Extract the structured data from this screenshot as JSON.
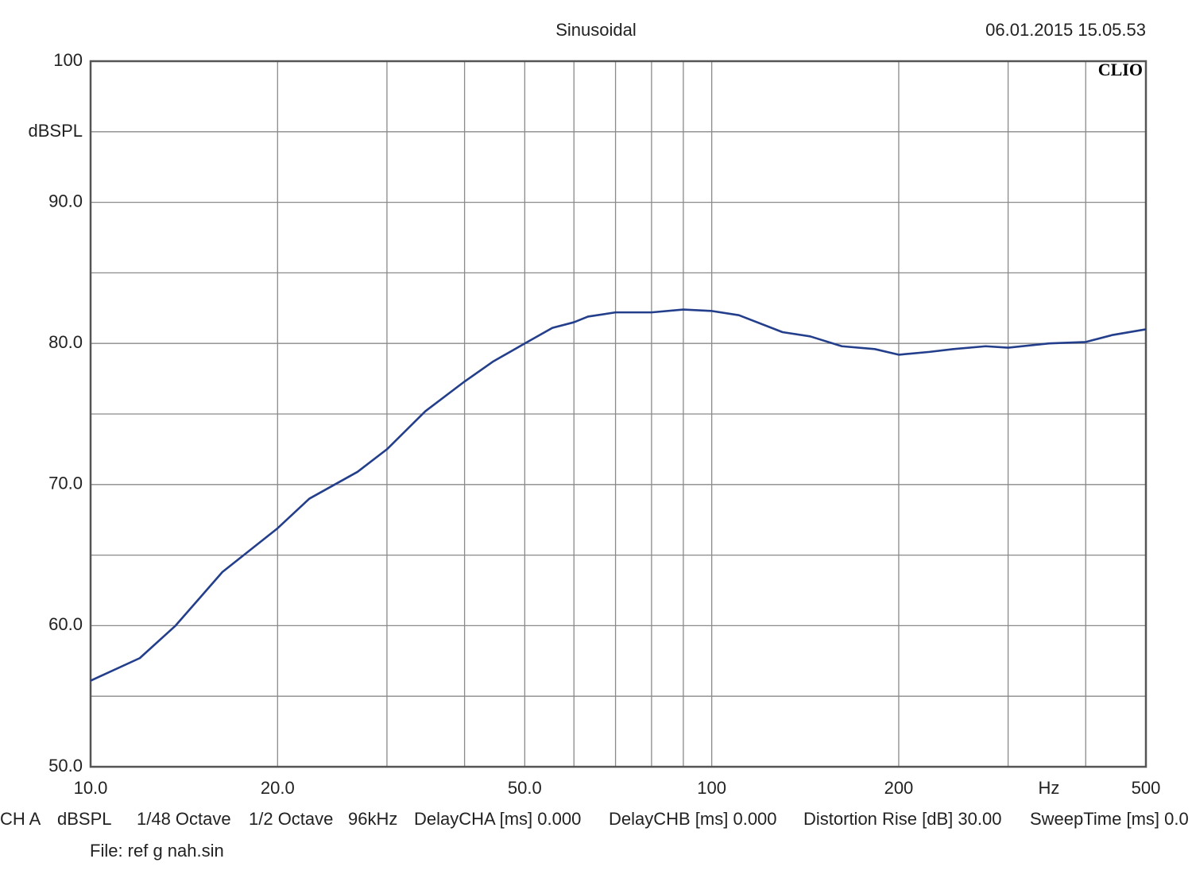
{
  "chart_data": {
    "type": "line",
    "title": "Sinusoidal",
    "date": "06.01.2015 15.05.53",
    "brand": "CLIO",
    "ylabel": "dBSPL",
    "xlabel": "Hz",
    "xscale": "log",
    "xlim": [
      10,
      500
    ],
    "ylim": [
      50,
      100
    ],
    "xticks": [
      {
        "value": 10,
        "label": "10.0"
      },
      {
        "value": 20,
        "label": "20.0"
      },
      {
        "value": 50,
        "label": "50.0"
      },
      100,
      200,
      500
    ],
    "yticks": [
      {
        "value": 50,
        "label": "50.0"
      },
      {
        "value": 60,
        "label": "60.0"
      },
      {
        "value": 70,
        "label": "70.0"
      },
      {
        "value": 80,
        "label": "80.0"
      },
      {
        "value": 90,
        "label": "90.0"
      },
      100
    ],
    "x_grid_lines": [
      30,
      40,
      60,
      70,
      80,
      90,
      300,
      400
    ],
    "y_grid_lines": [
      55,
      65,
      75,
      85,
      95
    ],
    "grid": true,
    "x": [
      10,
      12,
      13.7,
      16.3,
      20,
      22.5,
      26.9,
      30,
      34.6,
      40,
      44.4,
      50,
      55.4,
      60,
      63.2,
      70,
      80,
      90,
      100,
      110.6,
      130,
      144,
      162,
      183,
      200,
      224,
      245,
      276,
      300,
      349,
      400,
      442,
      500
    ],
    "series": [
      {
        "color": "#233e8b",
        "values": [
          56.1,
          57.7,
          60.0,
          63.8,
          66.9,
          69.0,
          70.9,
          72.5,
          75.2,
          77.3,
          78.7,
          80.0,
          81.1,
          81.5,
          81.9,
          82.2,
          82.2,
          82.4,
          82.3,
          82.0,
          80.8,
          80.5,
          79.8,
          79.6,
          79.2,
          79.4,
          79.6,
          79.8,
          79.7,
          80.0,
          80.1,
          80.6,
          81.0
        ]
      }
    ],
    "footer": [
      "CH A",
      "dBSPL",
      "1/48 Octave",
      "1/2 Octave",
      "96kHz",
      "DelayCHA [ms] 0.000",
      "DelayCHB [ms] 0.000",
      "Distortion Rise [dB] 30.00",
      "SweepTime [ms] 0.0"
    ],
    "file": "File: ref g nah.sin"
  }
}
